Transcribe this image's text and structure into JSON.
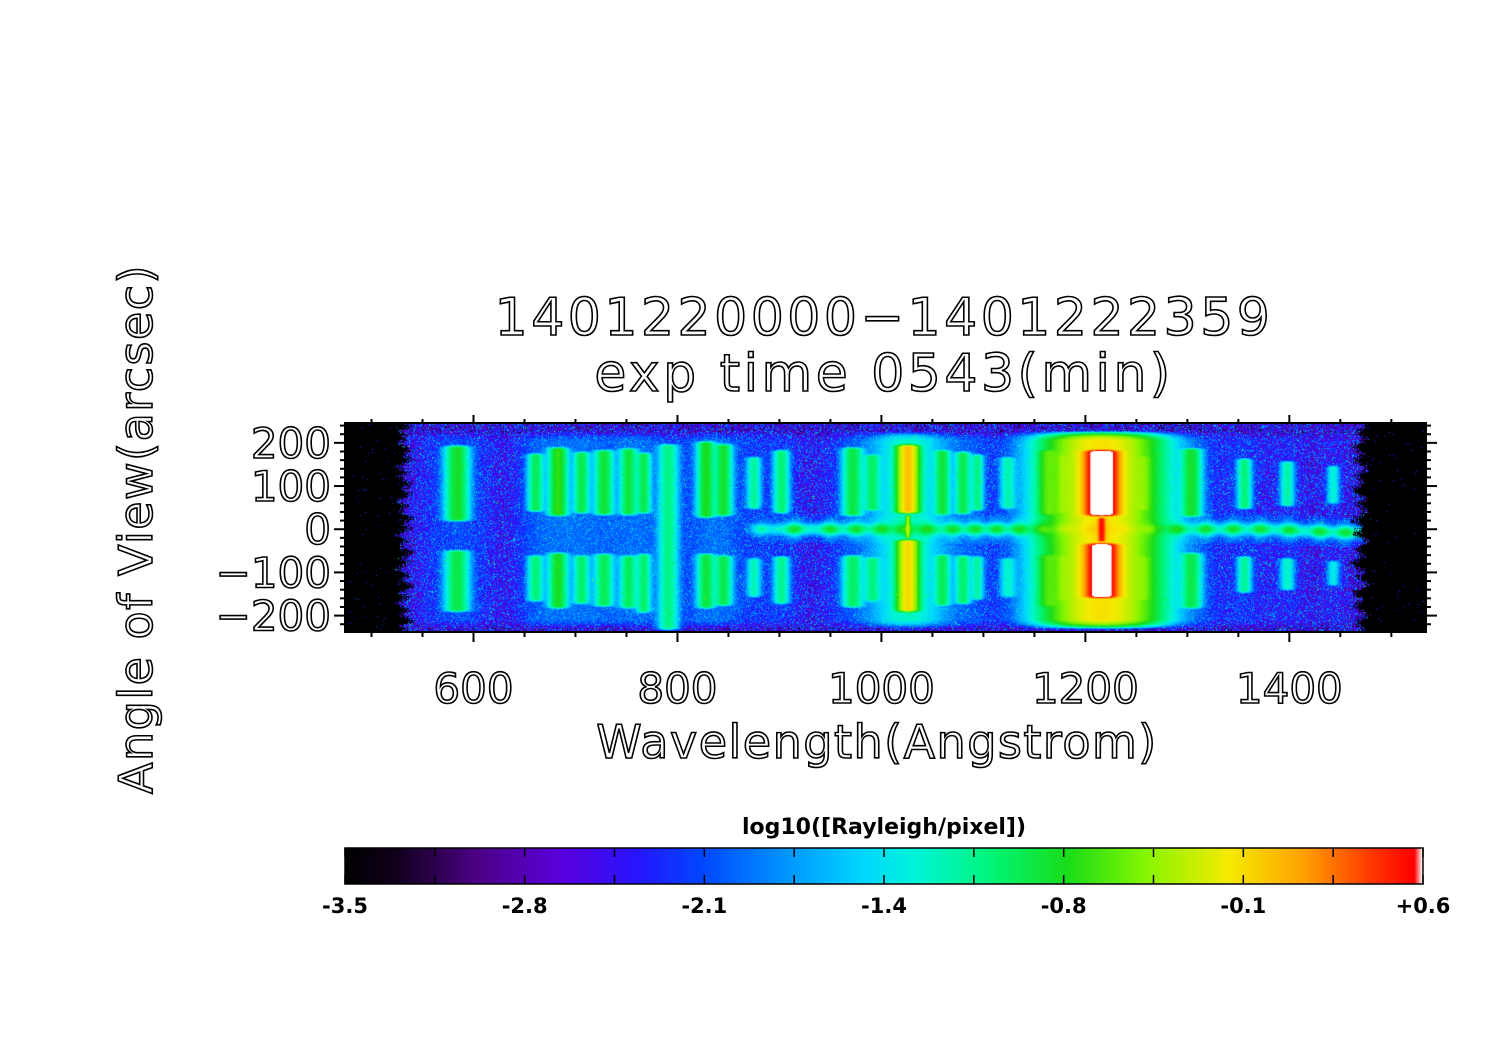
{
  "title": {
    "line1": "1401220000−1401222359",
    "line2": "exp time 0543(min)"
  },
  "chart_data": {
    "type": "heatmap",
    "title": "1401220000−1401222359 exp time 0543(min)",
    "xlabel": "Wavelength(Angstrom)",
    "ylabel": "Angle of View(arcsec)",
    "x_range": [
      474,
      1534
    ],
    "y_range": [
      -238,
      246
    ],
    "x_ticks": {
      "major": [
        600,
        800,
        1000,
        1200,
        1400
      ],
      "labels": [
        "600",
        "800",
        "1000",
        "1200",
        "1400"
      ],
      "minor_step": 50
    },
    "y_ticks": {
      "major": [
        200,
        100,
        0,
        -100,
        -200
      ],
      "labels": [
        "200",
        "100",
        "0",
        "−100",
        "−200"
      ],
      "minor_step": 20
    },
    "colorbar": {
      "title": "log10([Rayleigh/pixel])",
      "range": [
        -3.5,
        0.6
      ],
      "tick_labels": [
        "-3.5",
        "-2.8",
        "-2.1",
        "-1.4",
        "-0.8",
        "-0.1",
        "+0.6"
      ],
      "n_ticks": 13
    },
    "colormap_stops": [
      [
        0.0,
        [
          0,
          0,
          0
        ]
      ],
      [
        0.045,
        [
          15,
          0,
          25
        ]
      ],
      [
        0.12,
        [
          75,
          0,
          130
        ]
      ],
      [
        0.2,
        [
          90,
          0,
          220
        ]
      ],
      [
        0.27,
        [
          40,
          20,
          255
        ]
      ],
      [
        0.33,
        [
          0,
          70,
          255
        ]
      ],
      [
        0.41,
        [
          0,
          150,
          255
        ]
      ],
      [
        0.48,
        [
          0,
          215,
          255
        ]
      ],
      [
        0.53,
        [
          0,
          245,
          215
        ]
      ],
      [
        0.6,
        [
          0,
          245,
          120
        ]
      ],
      [
        0.67,
        [
          25,
          220,
          25
        ]
      ],
      [
        0.74,
        [
          130,
          245,
          0
        ]
      ],
      [
        0.82,
        [
          245,
          235,
          0
        ]
      ],
      [
        0.89,
        [
          255,
          160,
          0
        ]
      ],
      [
        0.95,
        [
          255,
          60,
          0
        ]
      ],
      [
        0.992,
        [
          255,
          0,
          0
        ]
      ],
      [
        1.0,
        [
          255,
          255,
          255
        ]
      ]
    ],
    "detector": {
      "data_x_range": [
        529,
        1472
      ],
      "background_level": -2.52,
      "noise_sigma": 0.4
    },
    "emission_bands": [
      {
        "wavelength": 584,
        "width": 15,
        "level": -0.82,
        "upper": [
          196,
          16
        ],
        "lower": [
          -46,
          -194
        ]
      },
      {
        "wavelength": 661,
        "width": 10,
        "level": -0.98,
        "upper": [
          178,
          38
        ],
        "lower": [
          -58,
          -170
        ]
      },
      {
        "wavelength": 683,
        "width": 12,
        "level": -0.72,
        "upper": [
          192,
          28
        ],
        "lower": [
          -52,
          -186
        ]
      },
      {
        "wavelength": 706,
        "width": 10,
        "level": -0.95,
        "upper": [
          182,
          34
        ],
        "lower": [
          -58,
          -176
        ]
      },
      {
        "wavelength": 728,
        "width": 12,
        "level": -0.88,
        "upper": [
          186,
          30
        ],
        "lower": [
          -54,
          -182
        ]
      },
      {
        "wavelength": 752,
        "width": 11,
        "level": -0.9,
        "upper": [
          190,
          30
        ],
        "lower": [
          -58,
          -186
        ]
      },
      {
        "wavelength": 767,
        "width": 9,
        "level": -0.95,
        "upper": [
          180,
          34
        ],
        "lower": [
          -54,
          -196
        ]
      },
      {
        "wavelength": 791,
        "width": 13,
        "level": -1.12,
        "upper": [
          200,
          -236
        ],
        "lower": null
      },
      {
        "wavelength": 828,
        "width": 11,
        "level": -0.8,
        "upper": [
          206,
          24
        ],
        "lower": [
          -54,
          -186
        ]
      },
      {
        "wavelength": 845,
        "width": 11,
        "level": -0.85,
        "upper": [
          200,
          28
        ],
        "lower": [
          -58,
          -180
        ]
      },
      {
        "wavelength": 875,
        "width": 9,
        "level": -1.18,
        "upper": [
          170,
          44
        ],
        "lower": [
          -64,
          -160
        ]
      },
      {
        "wavelength": 902,
        "width": 10,
        "level": -1.05,
        "upper": [
          186,
          34
        ],
        "lower": [
          -60,
          -176
        ]
      },
      {
        "wavelength": 972,
        "width": 13,
        "level": -0.92,
        "upper": [
          192,
          28
        ],
        "lower": [
          -58,
          -184
        ]
      },
      {
        "wavelength": 991,
        "width": 10,
        "level": -1.05,
        "upper": [
          176,
          40
        ],
        "lower": [
          -62,
          -170
        ]
      },
      {
        "wavelength": 1026,
        "width": 13,
        "level": 0.0,
        "upper": [
          198,
          34
        ],
        "lower": [
          -22,
          -194
        ],
        "neck": {
          "width": 3,
          "level": -0.42
        },
        "halo": "medium"
      },
      {
        "wavelength": 1060,
        "width": 10,
        "level": -0.92,
        "upper": [
          186,
          30
        ],
        "lower": [
          -56,
          -180
        ]
      },
      {
        "wavelength": 1080,
        "width": 10,
        "level": -0.95,
        "upper": [
          182,
          32
        ],
        "lower": [
          -58,
          -176
        ]
      },
      {
        "wavelength": 1094,
        "width": 8,
        "level": -1.12,
        "upper": [
          176,
          40
        ],
        "lower": [
          -60,
          -166
        ]
      },
      {
        "wavelength": 1124,
        "width": 10,
        "level": -1.28,
        "upper": [
          170,
          44
        ],
        "lower": [
          -64,
          -160
        ]
      },
      {
        "wavelength": 1163,
        "width": 12,
        "level": -0.88,
        "upper": [
          186,
          30
        ],
        "lower": [
          -56,
          -182
        ]
      },
      {
        "wavelength": 1178,
        "width": 8,
        "level": -1.02,
        "upper": [
          176,
          34
        ],
        "lower": [
          -58,
          -170
        ]
      },
      {
        "wavelength": 1216,
        "width": 19,
        "level": 0.9,
        "upper": [
          186,
          28
        ],
        "lower": [
          -30,
          -162
        ],
        "neck": {
          "width": 5,
          "level": 0.42
        },
        "halo": "strong"
      },
      {
        "wavelength": 1257,
        "width": 10,
        "level": -1.0,
        "upper": [
          172,
          40
        ],
        "lower": [
          -60,
          -168
        ]
      },
      {
        "wavelength": 1304,
        "width": 13,
        "level": -0.85,
        "upper": [
          190,
          26
        ],
        "lower": [
          -52,
          -186
        ]
      },
      {
        "wavelength": 1356,
        "width": 9,
        "level": -1.06,
        "upper": [
          166,
          44
        ],
        "lower": [
          -60,
          -150
        ]
      },
      {
        "wavelength": 1398,
        "width": 9,
        "level": -1.22,
        "upper": [
          160,
          50
        ],
        "lower": [
          -64,
          -144
        ]
      },
      {
        "wavelength": 1443,
        "width": 8,
        "level": -1.38,
        "upper": [
          150,
          56
        ],
        "lower": [
          -70,
          -134
        ]
      }
    ],
    "continuum": {
      "y_arcsec": 0,
      "x_range": [
        860,
        1472
      ],
      "base_level": -1.25,
      "droop_arcsec": -8,
      "blob_wavelengths": [
        880,
        915,
        950,
        975,
        1000,
        1022,
        1045,
        1070,
        1092,
        1113,
        1135,
        1158,
        1180,
        1205,
        1216,
        1238,
        1262,
        1290,
        1318,
        1345,
        1372,
        1400,
        1430,
        1455
      ]
    }
  }
}
